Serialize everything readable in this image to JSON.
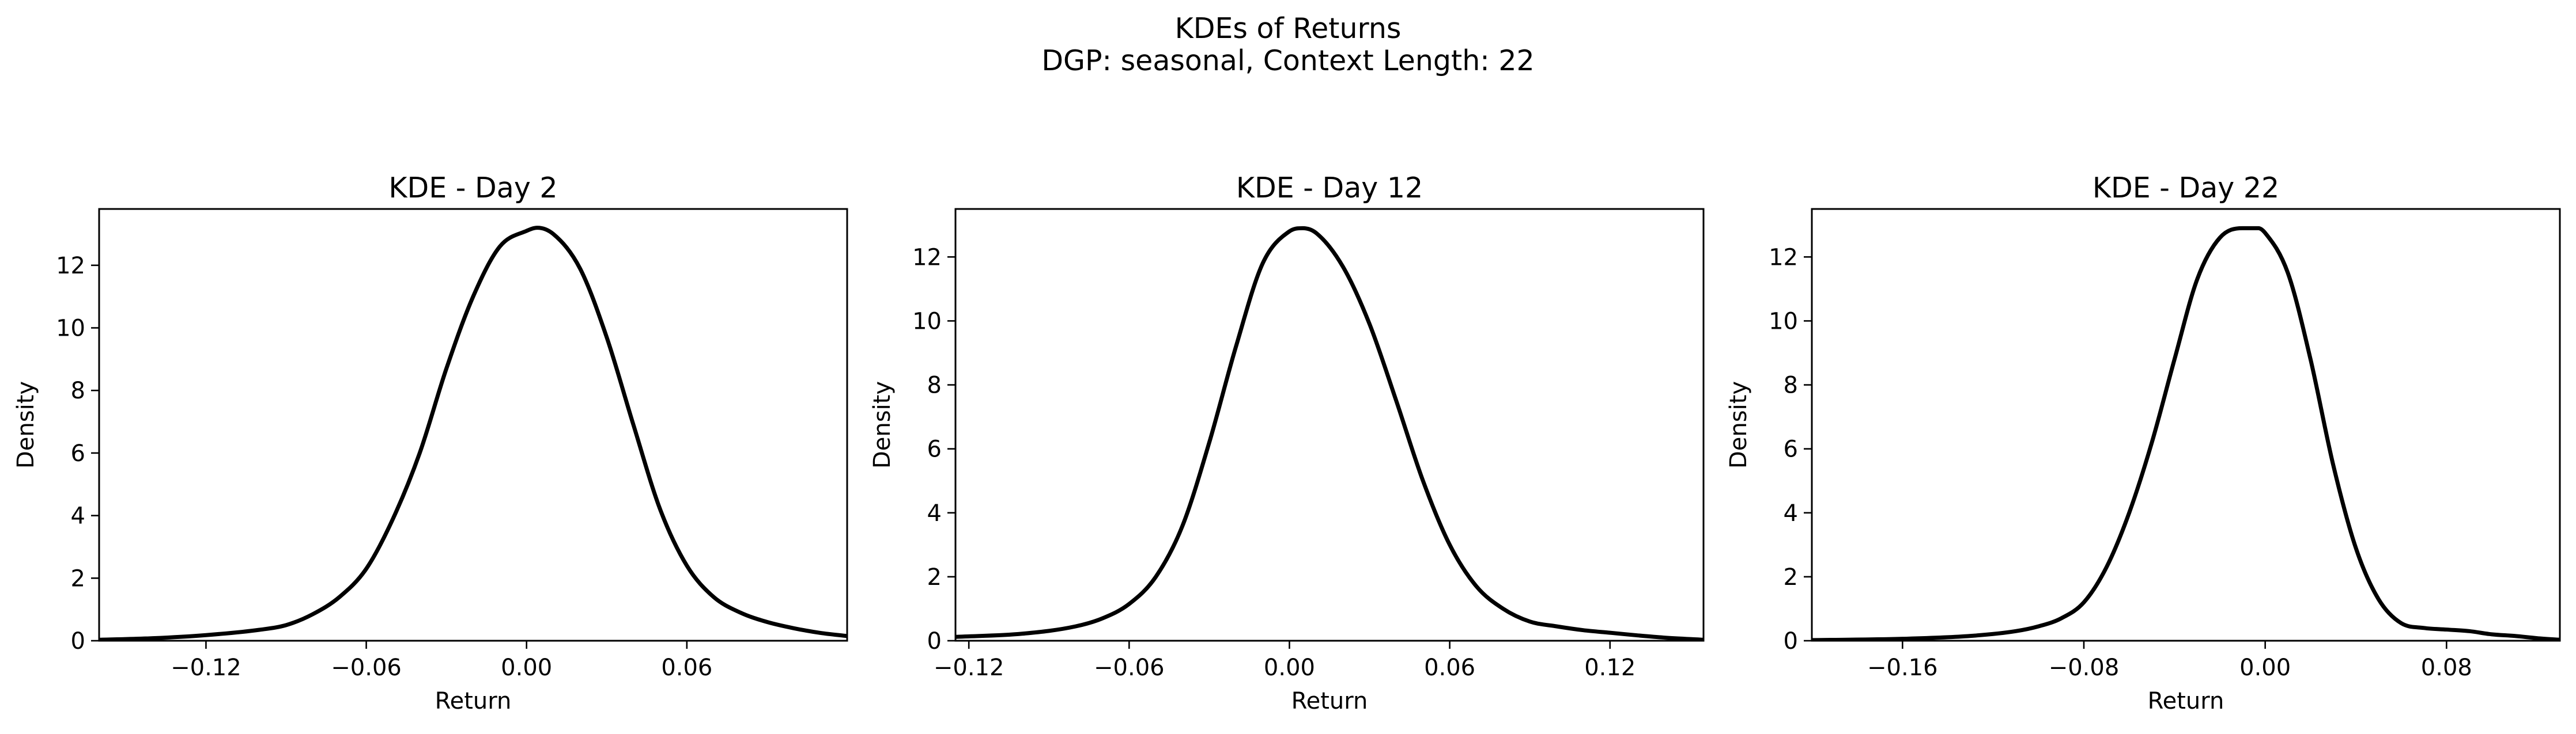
{
  "figure": {
    "title_line1": "KDEs of Returns",
    "title_line2": "DGP: seasonal, Context Length: 22"
  },
  "chart_data": [
    {
      "type": "line",
      "title": "KDE - Day 2",
      "xlabel": "Return",
      "ylabel": "Density",
      "xlim": [
        -0.16,
        0.12
      ],
      "ylim": [
        0,
        13.8
      ],
      "xticks": [
        -0.12,
        -0.06,
        0.0,
        0.06
      ],
      "xtick_labels": [
        "−0.12",
        "−0.06",
        "0.00",
        "0.06"
      ],
      "yticks": [
        0,
        2,
        4,
        6,
        8,
        10,
        12
      ],
      "ytick_labels": [
        "0",
        "2",
        "4",
        "6",
        "8",
        "10",
        "12"
      ],
      "grid": false,
      "series": [
        {
          "color": "#000000",
          "x": [
            -0.16,
            -0.14,
            -0.12,
            -0.1,
            -0.09,
            -0.08,
            -0.07,
            -0.06,
            -0.05,
            -0.04,
            -0.03,
            -0.02,
            -0.01,
            0.0,
            0.004,
            0.01,
            0.02,
            0.03,
            0.04,
            0.05,
            0.06,
            0.07,
            0.08,
            0.09,
            0.1,
            0.11,
            0.12
          ],
          "y": [
            0.03,
            0.08,
            0.18,
            0.35,
            0.5,
            0.85,
            1.4,
            2.3,
            3.9,
            6.0,
            8.7,
            11.0,
            12.6,
            13.1,
            13.2,
            13.0,
            11.9,
            9.7,
            6.9,
            4.2,
            2.4,
            1.4,
            0.9,
            0.6,
            0.4,
            0.25,
            0.15
          ]
        }
      ]
    },
    {
      "type": "line",
      "title": "KDE - Day 12",
      "xlabel": "Return",
      "ylabel": "Density",
      "xlim": [
        -0.125,
        0.155
      ],
      "ylim": [
        0,
        13.5
      ],
      "xticks": [
        -0.12,
        -0.06,
        0.0,
        0.06,
        0.12
      ],
      "xtick_labels": [
        "−0.12",
        "−0.06",
        "0.00",
        "0.06",
        "0.12"
      ],
      "yticks": [
        0,
        2,
        4,
        6,
        8,
        10,
        12
      ],
      "ytick_labels": [
        "0",
        "2",
        "4",
        "6",
        "8",
        "10",
        "12"
      ],
      "grid": false,
      "series": [
        {
          "color": "#000000",
          "x": [
            -0.125,
            -0.1,
            -0.08,
            -0.07,
            -0.06,
            -0.05,
            -0.04,
            -0.03,
            -0.02,
            -0.01,
            0.0,
            0.005,
            0.01,
            0.02,
            0.03,
            0.04,
            0.05,
            0.06,
            0.07,
            0.08,
            0.09,
            0.1,
            0.11,
            0.12,
            0.13,
            0.14,
            0.155
          ],
          "y": [
            0.12,
            0.22,
            0.45,
            0.7,
            1.15,
            2.0,
            3.6,
            6.2,
            9.2,
            11.8,
            12.8,
            12.9,
            12.75,
            11.7,
            9.9,
            7.5,
            5.0,
            3.0,
            1.7,
            1.0,
            0.6,
            0.45,
            0.33,
            0.25,
            0.17,
            0.1,
            0.03
          ]
        }
      ]
    },
    {
      "type": "line",
      "title": "KDE - Day 22",
      "xlabel": "Return",
      "ylabel": "Density",
      "xlim": [
        -0.2,
        0.13
      ],
      "ylim": [
        0,
        13.5
      ],
      "xticks": [
        -0.16,
        -0.08,
        0.0,
        0.08
      ],
      "xtick_labels": [
        "−0.16",
        "−0.08",
        "0.00",
        "0.08"
      ],
      "yticks": [
        0,
        2,
        4,
        6,
        8,
        10,
        12
      ],
      "ytick_labels": [
        "0",
        "2",
        "4",
        "6",
        "8",
        "10",
        "12"
      ],
      "grid": false,
      "series": [
        {
          "color": "#000000",
          "x": [
            -0.2,
            -0.16,
            -0.13,
            -0.11,
            -0.1,
            -0.09,
            -0.08,
            -0.07,
            -0.06,
            -0.05,
            -0.04,
            -0.03,
            -0.02,
            -0.01,
            -0.003,
            0.0,
            0.01,
            0.02,
            0.03,
            0.04,
            0.05,
            0.06,
            0.07,
            0.08,
            0.09,
            0.1,
            0.11,
            0.12,
            0.13
          ],
          "y": [
            0.02,
            0.06,
            0.15,
            0.3,
            0.45,
            0.7,
            1.2,
            2.3,
            4.0,
            6.2,
            8.8,
            11.3,
            12.6,
            12.9,
            12.9,
            12.75,
            11.5,
            8.8,
            5.5,
            2.9,
            1.3,
            0.55,
            0.4,
            0.35,
            0.3,
            0.2,
            0.15,
            0.08,
            0.03
          ]
        }
      ]
    }
  ]
}
